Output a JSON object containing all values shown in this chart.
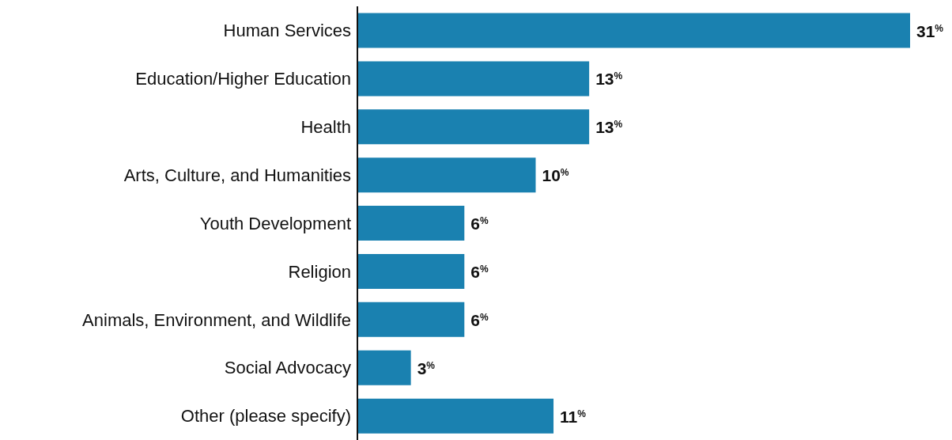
{
  "chart_data": {
    "type": "bar",
    "orientation": "horizontal",
    "categories": [
      "Human Services",
      "Education/Higher Education",
      "Health",
      "Arts, Culture, and Humanities",
      "Youth Development",
      "Religion",
      "Animals, Environment, and Wildlife",
      "Social Advocacy",
      "Other (please specify)"
    ],
    "values": [
      31,
      13,
      13,
      10,
      6,
      6,
      6,
      3,
      11
    ],
    "color": "#1a81b0",
    "value_labels": [
      "31$^{%}$",
      "13$^{%}$",
      "13$^{%}$",
      "10$^{%}$",
      "6$^{%}$",
      "6$^{%}$",
      "6$^{%}$",
      "3$^{%}$",
      "11$^{%}$"
    ],
    "grid": false,
    "legend": false
  }
}
